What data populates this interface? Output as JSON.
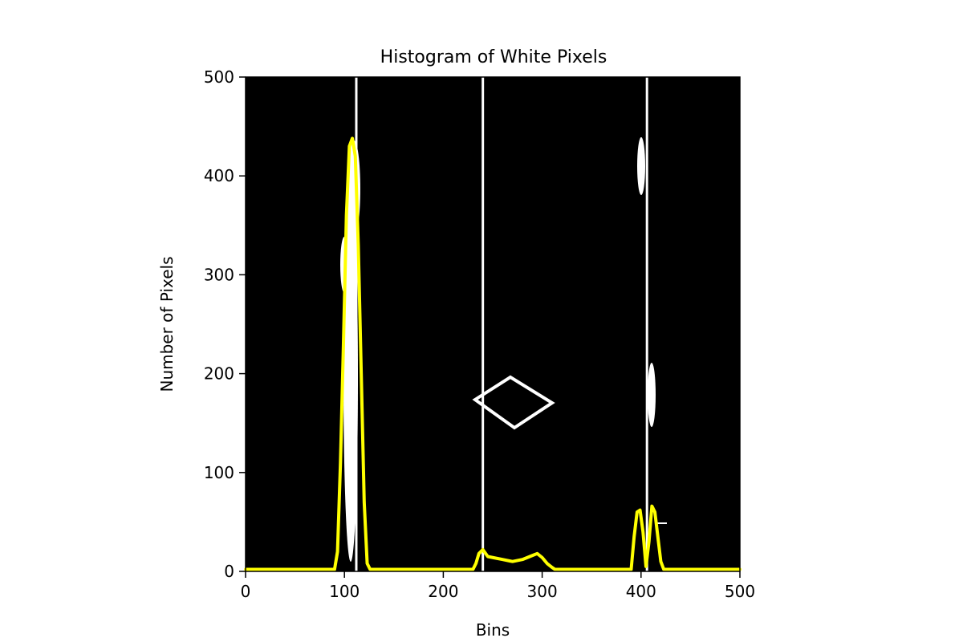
{
  "chart_data": {
    "type": "line",
    "title": "Histogram of White Pixels",
    "xlabel": "Bins",
    "ylabel": "Number of Pixels",
    "xlim": [
      0,
      500
    ],
    "ylim": [
      0,
      500
    ],
    "x_ticks": [
      0,
      100,
      200,
      300,
      400,
      500
    ],
    "y_ticks": [
      0,
      100,
      200,
      300,
      400,
      500
    ],
    "x_tick_labels": [
      "0",
      "100",
      "200",
      "300",
      "400",
      "500"
    ],
    "y_tick_labels": [
      "0",
      "100",
      "200",
      "300",
      "400",
      "500"
    ],
    "background_image": "black binary lane mask with white lane pixels",
    "grid": false,
    "series": [
      {
        "color": "#ffff00",
        "x": [
          0,
          90,
          93,
          96,
          99,
          102,
          105,
          108,
          111,
          114,
          117,
          120,
          123,
          126,
          230,
          233,
          236,
          240,
          245,
          250,
          260,
          270,
          280,
          290,
          295,
          300,
          305,
          310,
          313,
          390,
          393,
          396,
          399,
          402,
          405,
          408,
          411,
          414,
          417,
          420,
          423,
          500
        ],
        "y": [
          2,
          2,
          20,
          110,
          230,
          360,
          430,
          438,
          420,
          330,
          200,
          70,
          8,
          2,
          2,
          8,
          18,
          22,
          15,
          14,
          12,
          10,
          12,
          16,
          18,
          14,
          8,
          4,
          2,
          2,
          35,
          60,
          62,
          40,
          5,
          30,
          66,
          60,
          35,
          10,
          2,
          2
        ]
      }
    ],
    "vertical_lines": [
      {
        "x": 112,
        "color": "#ffffff"
      },
      {
        "x": 240,
        "color": "#ffffff"
      },
      {
        "x": 406,
        "color": "#ffffff"
      }
    ]
  }
}
